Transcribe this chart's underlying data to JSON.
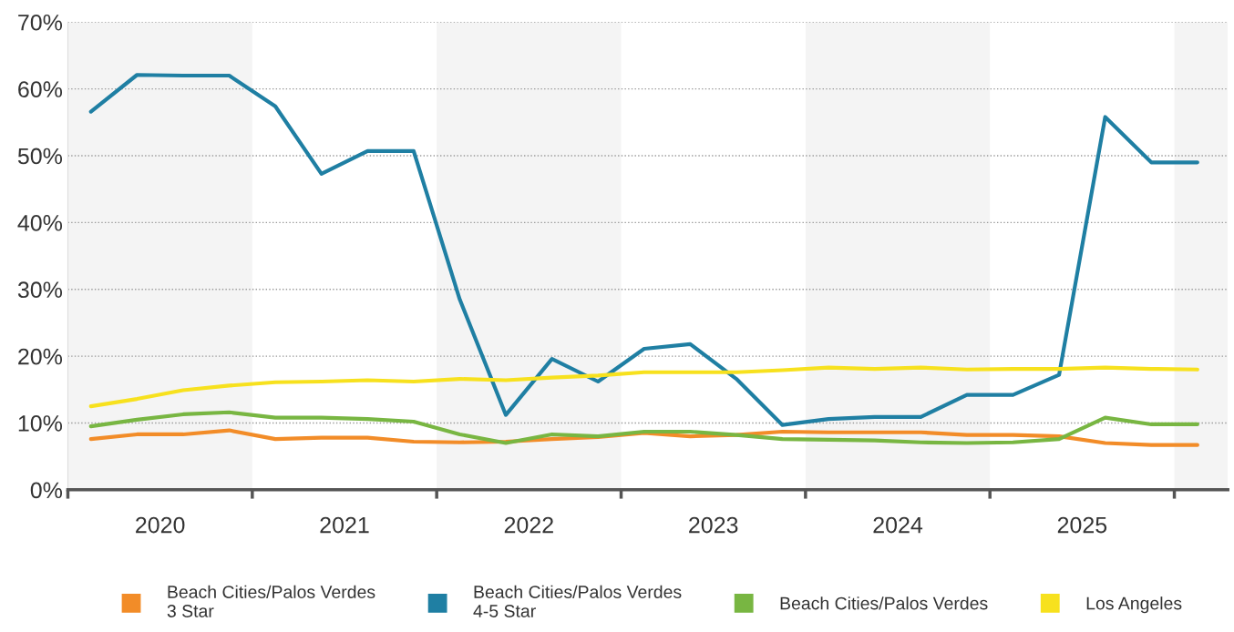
{
  "chart_data": {
    "type": "line",
    "x": [
      2020.125,
      2020.375,
      2020.625,
      2020.875,
      2021.125,
      2021.375,
      2021.625,
      2021.875,
      2022.125,
      2022.375,
      2022.625,
      2022.875,
      2023.125,
      2023.375,
      2023.625,
      2023.875,
      2024.125,
      2024.375,
      2024.625,
      2024.875,
      2025.125,
      2025.375,
      2025.625,
      2025.875,
      2026.125
    ],
    "series": [
      {
        "name": "Beach Cities/Palos Verdes 3 Star",
        "color": "#f28c28",
        "values": [
          7.6,
          8.3,
          8.3,
          8.9,
          7.6,
          7.8,
          7.8,
          7.2,
          7.1,
          7.2,
          7.6,
          7.9,
          8.5,
          8.0,
          8.2,
          8.7,
          8.6,
          8.6,
          8.6,
          8.2,
          8.2,
          8.0,
          7.0,
          6.7,
          6.7
        ]
      },
      {
        "name": "Beach Cities/Palos Verdes 4-5 Star",
        "color": "#1f7fa3",
        "values": [
          56.6,
          62.1,
          62.0,
          62.0,
          57.4,
          47.3,
          50.7,
          50.7,
          28.5,
          11.2,
          19.6,
          16.2,
          21.1,
          21.8,
          16.6,
          9.7,
          10.6,
          10.9,
          10.9,
          14.2,
          14.2,
          17.2,
          55.8,
          49.0,
          49.0
        ]
      },
      {
        "name": "Beach Cities/Palos Verdes",
        "color": "#78b642",
        "values": [
          9.5,
          10.5,
          11.3,
          11.6,
          10.8,
          10.8,
          10.6,
          10.2,
          8.3,
          7.0,
          8.3,
          8.0,
          8.7,
          8.7,
          8.2,
          7.6,
          7.5,
          7.4,
          7.1,
          7.0,
          7.1,
          7.6,
          10.8,
          9.8,
          9.8
        ]
      },
      {
        "name": "Los Angeles",
        "color": "#f7e11e",
        "values": [
          12.5,
          13.6,
          14.9,
          15.6,
          16.1,
          16.2,
          16.4,
          16.2,
          16.6,
          16.4,
          16.8,
          17.1,
          17.6,
          17.6,
          17.6,
          17.9,
          18.3,
          18.1,
          18.3,
          18.0,
          18.1,
          18.1,
          18.3,
          18.1,
          18.0
        ]
      }
    ],
    "xlim": [
      2020,
      2026.29
    ],
    "xticks": [
      {
        "value": 2020,
        "label": null
      },
      {
        "value": 2021,
        "label": null
      },
      {
        "value": 2022,
        "label": null
      },
      {
        "value": 2023,
        "label": null
      },
      {
        "value": 2024,
        "label": null
      },
      {
        "value": 2025,
        "label": null
      },
      {
        "value": 2026,
        "label": null
      },
      {
        "value": 2020.5,
        "label": "2020"
      },
      {
        "value": 2021.5,
        "label": "2021"
      },
      {
        "value": 2022.5,
        "label": "2022"
      },
      {
        "value": 2023.5,
        "label": "2023"
      },
      {
        "value": 2024.5,
        "label": "2024"
      },
      {
        "value": 2025.5,
        "label": "2025"
      }
    ],
    "ylim": [
      0,
      70
    ],
    "yticks": [
      {
        "value": 0,
        "label": "0%"
      },
      {
        "value": 10,
        "label": "10%"
      },
      {
        "value": 20,
        "label": "20%"
      },
      {
        "value": 30,
        "label": "30%"
      },
      {
        "value": 40,
        "label": "40%"
      },
      {
        "value": 50,
        "label": "50%"
      },
      {
        "value": 60,
        "label": "60%"
      },
      {
        "value": 70,
        "label": "70%"
      }
    ],
    "bands": [
      {
        "axis": "x",
        "from": 2020,
        "to": 2021,
        "color": "#f4f4f4"
      },
      {
        "axis": "x",
        "from": 2022,
        "to": 2023,
        "color": "#f4f4f4"
      },
      {
        "axis": "x",
        "from": 2024,
        "to": 2025,
        "color": "#f4f4f4"
      },
      {
        "axis": "x",
        "from": 2026,
        "to": 2026.29,
        "color": "#f4f4f4"
      }
    ],
    "grid": "y",
    "legend": "bottom",
    "marker": "none",
    "line_style": "solid"
  }
}
